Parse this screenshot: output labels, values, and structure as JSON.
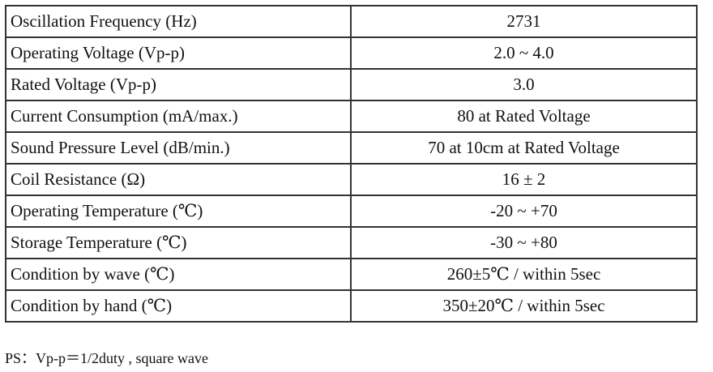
{
  "spec_table": {
    "rows": [
      {
        "parameter": "Oscillation Frequency (Hz)",
        "value": "2731"
      },
      {
        "parameter": "Operating Voltage (Vp-p)",
        "value": "2.0 ~ 4.0"
      },
      {
        "parameter": "Rated Voltage (Vp-p)",
        "value": "3.0"
      },
      {
        "parameter": "Current Consumption (mA/max.)",
        "value": "80 at Rated Voltage"
      },
      {
        "parameter": "Sound Pressure Level (dB/min.)",
        "value": "70 at 10cm at Rated Voltage"
      },
      {
        "parameter": "Coil Resistance (Ω)",
        "value": "16 ± 2"
      },
      {
        "parameter": "Operating Temperature (℃)",
        "value": "-20 ~ +70"
      },
      {
        "parameter": "Storage Temperature (℃)",
        "value": "-30 ~ +80"
      },
      {
        "parameter": "Condition by wave (℃)",
        "value": "260±5℃ / within 5sec"
      },
      {
        "parameter": "Condition by hand (℃)",
        "value": "350±20℃  / within 5sec"
      }
    ]
  },
  "note": "PS：Vp-p＝1/2duty , square wave"
}
